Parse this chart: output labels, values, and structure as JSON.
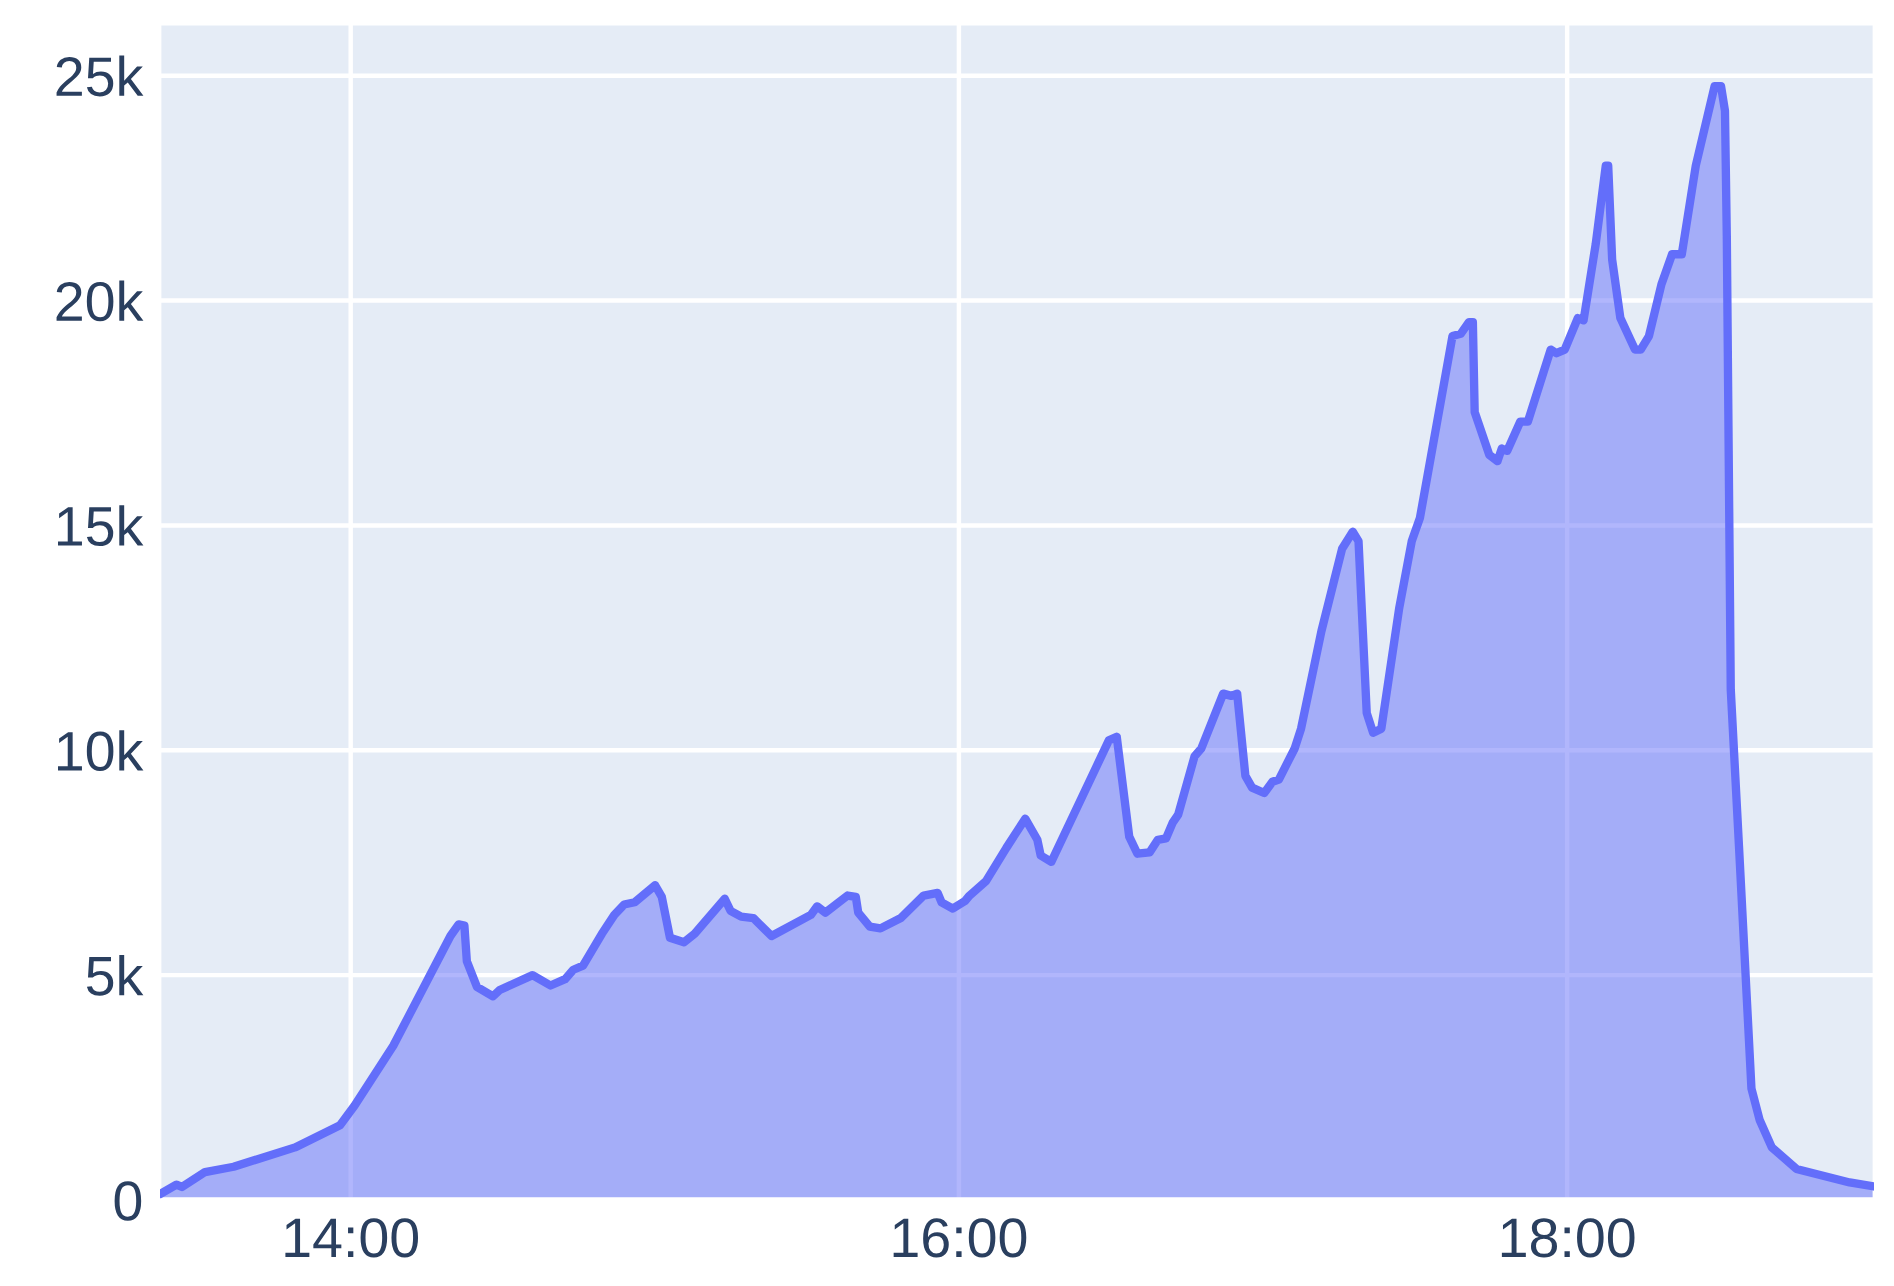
{
  "chart_data": {
    "type": "area",
    "x": [
      13.373,
      13.427,
      13.445,
      13.521,
      13.615,
      13.817,
      13.965,
      14.013,
      14.14,
      14.328,
      14.355,
      14.374,
      14.382,
      14.415,
      14.468,
      14.49,
      14.598,
      14.657,
      14.705,
      14.732,
      14.764,
      14.826,
      14.867,
      14.899,
      14.934,
      15.001,
      15.023,
      15.05,
      15.096,
      15.131,
      15.23,
      15.249,
      15.284,
      15.324,
      15.384,
      15.513,
      15.534,
      15.561,
      15.634,
      15.661,
      15.669,
      15.707,
      15.742,
      15.809,
      15.884,
      15.93,
      15.943,
      15.98,
      16.02,
      16.035,
      16.089,
      16.156,
      16.218,
      16.258,
      16.269,
      16.304,
      16.493,
      16.519,
      16.56,
      16.587,
      16.627,
      16.654,
      16.681,
      16.703,
      16.721,
      16.775,
      16.797,
      16.869,
      16.896,
      16.915,
      16.942,
      16.964,
      17.004,
      17.031,
      17.052,
      17.104,
      17.125,
      17.192,
      17.26,
      17.295,
      17.314,
      17.341,
      17.362,
      17.389,
      17.448,
      17.489,
      17.516,
      17.623,
      17.65,
      17.677,
      17.69,
      17.696,
      17.744,
      17.771,
      17.785,
      17.803,
      17.846,
      17.871,
      17.946,
      17.965,
      17.992,
      18.035,
      18.054,
      18.094,
      18.127,
      18.135,
      18.148,
      18.175,
      18.223,
      18.242,
      18.269,
      18.31,
      18.345,
      18.377,
      18.423,
      18.485,
      18.506,
      18.519,
      18.525,
      18.538,
      18.565,
      18.606,
      18.633,
      18.673,
      18.754,
      18.929,
      19.009
    ],
    "series": [
      {
        "color": "#636efa",
        "values": [
          130,
          340,
          290,
          620,
          740,
          1170,
          1660,
          2100,
          3430,
          5870,
          6130,
          6100,
          5310,
          4740,
          4530,
          4670,
          5000,
          4770,
          4910,
          5120,
          5210,
          5920,
          6340,
          6570,
          6620,
          7000,
          6740,
          5830,
          5730,
          5920,
          6700,
          6430,
          6300,
          6270,
          5870,
          6340,
          6530,
          6390,
          6770,
          6740,
          6390,
          6080,
          6040,
          6270,
          6770,
          6830,
          6620,
          6480,
          6650,
          6770,
          7090,
          7830,
          8480,
          8010,
          7660,
          7520,
          10220,
          10300,
          8080,
          7700,
          7730,
          8010,
          8040,
          8390,
          8570,
          9870,
          10040,
          11260,
          11210,
          11260,
          9430,
          9170,
          9050,
          9300,
          9350,
          10040,
          10480,
          12650,
          14480,
          14860,
          14650,
          10830,
          10390,
          10480,
          13170,
          14650,
          15170,
          19210,
          19260,
          19520,
          19520,
          17520,
          16570,
          16430,
          16710,
          16660,
          17310,
          17310,
          18910,
          18830,
          18910,
          19610,
          19560,
          21260,
          23000,
          23000,
          20910,
          19610,
          18910,
          18910,
          19210,
          20360,
          21030,
          21030,
          23000,
          24770,
          24770,
          24220,
          21430,
          11350,
          7870,
          2480,
          1780,
          1170,
          690,
          390,
          300
        ]
      }
    ],
    "xlim": [
      13.373,
      19.009
    ],
    "xticks": [
      {
        "value": 14,
        "label": "14:00"
      },
      {
        "value": 16,
        "label": "16:00"
      },
      {
        "value": 18,
        "label": "18:00"
      }
    ],
    "ylim": [
      0,
      26150
    ],
    "yticks": [
      0,
      {
        "value": 5000,
        "label": "5k"
      },
      {
        "value": 10000,
        "label": "10k"
      },
      {
        "value": 15000,
        "label": "15k"
      },
      {
        "value": 20000,
        "label": "20k"
      },
      {
        "value": 25000,
        "label": "25k"
      }
    ],
    "grid": true
  }
}
